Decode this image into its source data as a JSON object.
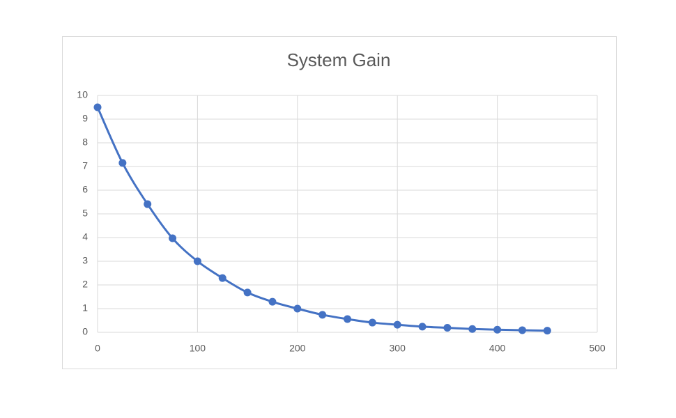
{
  "chart_data": {
    "type": "line",
    "title": "System Gain",
    "x": [
      0,
      25,
      50,
      75,
      100,
      125,
      150,
      175,
      200,
      225,
      250,
      275,
      300,
      325,
      350,
      375,
      400,
      425,
      450
    ],
    "series": [
      {
        "color": "#4472c4",
        "values": [
          9.5,
          7.15,
          5.41,
          3.97,
          3.0,
          2.29,
          1.68,
          1.29,
          1.0,
          0.74,
          0.56,
          0.41,
          0.32,
          0.24,
          0.19,
          0.14,
          0.11,
          0.09,
          0.07
        ]
      }
    ],
    "xlim": [
      0,
      500
    ],
    "xticks": [
      0,
      100,
      200,
      300,
      400,
      500
    ],
    "ylim": [
      0,
      10
    ],
    "yticks": [
      0,
      1,
      2,
      3,
      4,
      5,
      6,
      7,
      8,
      9,
      10
    ],
    "grid": true,
    "smooth": true,
    "markers": true
  }
}
